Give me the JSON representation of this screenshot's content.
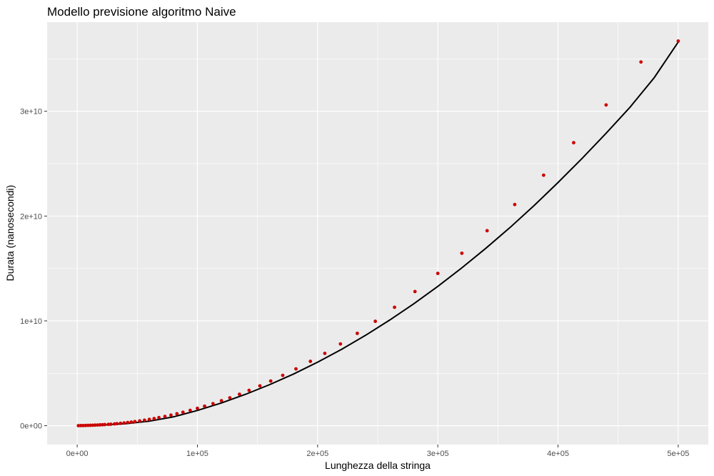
{
  "chart_data": {
    "type": "scatter",
    "title": "Modello previsione algoritmo Naive",
    "xlabel": "Lunghezza della stringa",
    "ylabel": "Durata (nanosecondi)",
    "xlim": [
      -25000,
      525000
    ],
    "ylim": [
      -1800000000,
      38500000000
    ],
    "x_ticks": [
      0,
      100000,
      200000,
      300000,
      400000,
      500000
    ],
    "x_tick_labels": [
      "0e+00",
      "1e+05",
      "2e+05",
      "3e+05",
      "4e+05",
      "5e+05"
    ],
    "y_ticks": [
      0,
      10000000000,
      20000000000,
      30000000000
    ],
    "y_tick_labels": [
      "0e+00",
      "1e+10",
      "2e+10",
      "3e+10"
    ],
    "grid": true,
    "colors": {
      "panel": "#ebebeb",
      "grid_major": "#ffffff",
      "points": "#cc0000",
      "line": "#000000"
    },
    "series": [
      {
        "kind": "points",
        "x": [
          1000,
          3000,
          5000,
          7000,
          9000,
          11000,
          13000,
          15000,
          17000,
          19000,
          21000,
          23000,
          26000,
          28000,
          31000,
          33000,
          36000,
          39000,
          42000,
          45000,
          48000,
          52000,
          56000,
          60000,
          64000,
          68000,
          73000,
          78000,
          83000,
          88000,
          94000,
          100000,
          106000,
          113000,
          120000,
          127000,
          135000,
          143000,
          152000,
          161000,
          171000,
          182000,
          194000,
          206000,
          219000,
          233000,
          248000,
          264000,
          281000,
          300000,
          320000,
          341000,
          364000,
          388000,
          413000,
          440000,
          469000,
          500000
        ],
        "y": [
          5000000,
          10000000,
          15000000,
          20000000,
          28000000,
          36000000,
          45000000,
          55000000,
          65000000,
          78000000,
          90000000,
          105000000,
          125000000,
          142000000,
          168000000,
          190000000,
          225000000,
          260000000,
          300000000,
          345000000,
          390000000,
          455000000,
          525000000,
          600000000,
          680000000,
          770000000,
          880000000,
          1010000000,
          1140000000,
          1280000000,
          1460000000,
          1660000000,
          1860000000,
          2100000000,
          2380000000,
          2660000000,
          3000000000,
          3370000000,
          3800000000,
          4260000000,
          4800000000,
          5420000000,
          6140000000,
          6900000000,
          7800000000,
          8810000000,
          9960000000,
          11300000000,
          12800000000,
          14530000000,
          16450000000,
          18600000000,
          21100000000,
          23900000000,
          27000000000,
          30600000000,
          34700000000,
          36700000000
        ]
      },
      {
        "kind": "line",
        "x": [
          1000,
          20000,
          40000,
          60000,
          80000,
          100000,
          120000,
          140000,
          160000,
          180000,
          200000,
          220000,
          240000,
          260000,
          280000,
          300000,
          320000,
          340000,
          360000,
          380000,
          400000,
          420000,
          440000,
          460000,
          480000,
          500000
        ],
        "y": [
          0,
          50000000,
          190000000,
          430000000,
          840000000,
          1450000000,
          2170000000,
          2990000000,
          3910000000,
          4930000000,
          6060000000,
          7290000000,
          8630000000,
          10080000000,
          11630000000,
          13290000000,
          15060000000,
          16930000000,
          18900000000,
          20990000000,
          23200000000,
          25500000000,
          27900000000,
          30400000000,
          33200000000,
          36600000000
        ]
      }
    ]
  }
}
